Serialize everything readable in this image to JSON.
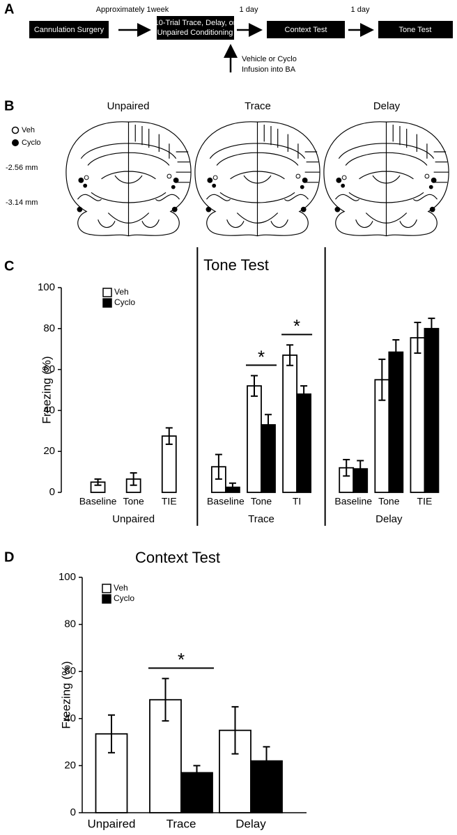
{
  "panel_a": {
    "label": "A",
    "boxes": [
      "Cannulation Surgery",
      "10-Trial Trace, Delay, or",
      "Unpaired Conditioning",
      "Context Test",
      "Tone Test"
    ],
    "intervals": [
      "Approximately 1week",
      "1 day",
      "1 day"
    ],
    "infusion": [
      "Vehicle or Cyclo",
      "Infusion into BA"
    ]
  },
  "panel_b": {
    "label": "B",
    "legend": [
      "Veh",
      "Cyclo"
    ],
    "levels": [
      "-2.56 mm",
      "-3.14 mm"
    ],
    "titles": [
      "Unpaired",
      "Trace",
      "Delay"
    ]
  },
  "chart_data": [
    {
      "type": "bar",
      "panel": "C",
      "title": "Tone Test",
      "ylabel": "Freezing (%)",
      "ylim": [
        0,
        100
      ],
      "yticks": [
        0,
        20,
        40,
        60,
        80,
        100
      ],
      "legend": "upper left",
      "groups": [
        "Unpaired",
        "Trace",
        "Delay"
      ],
      "categories": [
        "Baseline",
        "Tone",
        "TIE",
        "Baseline",
        "Tone",
        "TI",
        "Baseline",
        "Tone",
        "TIE"
      ],
      "series": [
        {
          "name": "Veh",
          "color": "#ffffff",
          "values": [
            5,
            6.5,
            27.5,
            12.5,
            52,
            67,
            12,
            55,
            75.5
          ],
          "errors": [
            1.5,
            3,
            4,
            6,
            5,
            5,
            4,
            10,
            7.5
          ]
        },
        {
          "name": "Cyclo",
          "color": "#000000",
          "values": [
            null,
            null,
            null,
            2.5,
            33,
            48,
            11.5,
            68.5,
            80
          ],
          "errors": [
            null,
            null,
            null,
            2,
            5,
            4,
            4,
            6,
            5
          ]
        }
      ],
      "significance": [
        null,
        null,
        null,
        null,
        "*",
        "*",
        null,
        null,
        null
      ]
    },
    {
      "type": "bar",
      "panel": "D",
      "title": "Context Test",
      "ylabel": "Freezing (%)",
      "ylim": [
        0,
        100
      ],
      "yticks": [
        0,
        20,
        40,
        60,
        80,
        100
      ],
      "legend": "upper left",
      "categories": [
        "Unpaired",
        "Trace",
        "Delay"
      ],
      "series": [
        {
          "name": "Veh",
          "color": "#ffffff",
          "values": [
            33.5,
            48,
            35
          ],
          "errors": [
            8,
            9,
            10
          ]
        },
        {
          "name": "Cyclo",
          "color": "#000000",
          "values": [
            null,
            17,
            22
          ],
          "errors": [
            null,
            3,
            6
          ]
        }
      ],
      "significance": [
        null,
        "*",
        null
      ]
    }
  ]
}
